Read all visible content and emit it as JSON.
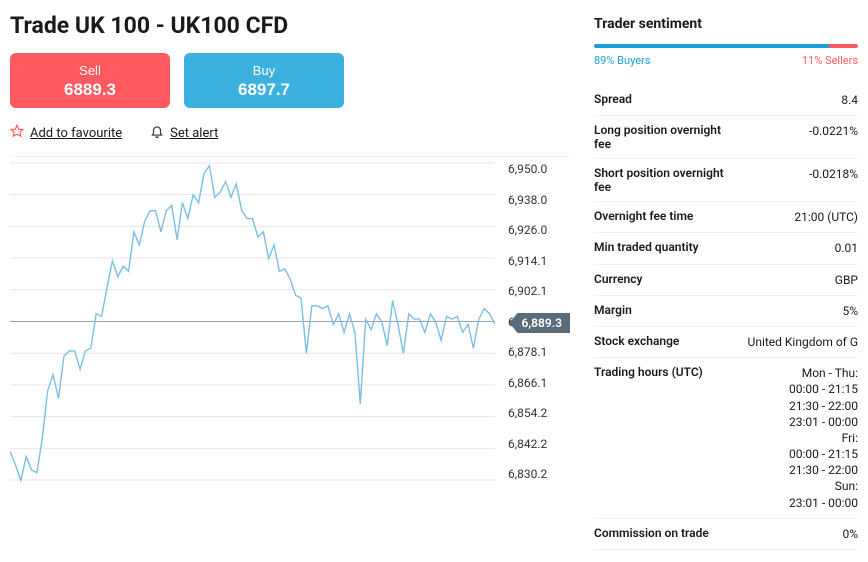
{
  "title": "Trade UK 100 - UK100 CFD",
  "trade": {
    "sell_label": "Sell",
    "sell_price": "6889.3",
    "buy_label": "Buy",
    "buy_price": "6897.7"
  },
  "actions": {
    "favourite": "Add to favourite",
    "alert": "Set alert"
  },
  "chart": {
    "type": "line",
    "line_color": "#7bbfe6",
    "bg_color": "#ffffff",
    "grid_color": "#e6e6e6",
    "current_line_color": "#9aa5b0",
    "current_badge_bg": "#5a6b7a",
    "y_ticks": [
      "6,950.0",
      "6,938.0",
      "6,926.0",
      "6,914.1",
      "6,902.1",
      "6,889.3",
      "6,878.1",
      "6,866.1",
      "6,854.2",
      "6,842.2",
      "6,830.2"
    ],
    "current_value": "6,889.3",
    "current_index": 5,
    "y_min": 6830.2,
    "y_max": 6950.0,
    "series": [
      6841,
      6836,
      6830,
      6839,
      6834,
      6833,
      6846,
      6864,
      6870,
      6861,
      6877,
      6879,
      6879,
      6872,
      6879,
      6880,
      6893,
      6892,
      6903,
      6913,
      6907,
      6911,
      6909,
      6924,
      6919,
      6928,
      6932,
      6932,
      6924,
      6932,
      6934,
      6921,
      6935,
      6929,
      6938,
      6935,
      6946,
      6949,
      6937,
      6939,
      6943,
      6937,
      6942,
      6932,
      6929,
      6929,
      6922,
      6924,
      6914,
      6919,
      6909,
      6910,
      6906,
      6900,
      6899,
      6878,
      6896,
      6896,
      6895,
      6896,
      6889,
      6893,
      6886,
      6893,
      6886,
      6859,
      6891,
      6887,
      6893,
      6890,
      6881,
      6898,
      6889,
      6878,
      6893,
      6891,
      6891,
      6886,
      6893,
      6890,
      6883,
      6892,
      6891,
      6892,
      6886,
      6889,
      6880,
      6891,
      6895,
      6893,
      6889
    ]
  },
  "sentiment": {
    "title": "Trader sentiment",
    "buyers_pct": 89,
    "sellers_pct": 11,
    "buyers_label": "89% Buyers",
    "sellers_label": "11% Sellers",
    "buyers_color": "#18a0d8",
    "sellers_color": "#ff5a5f"
  },
  "meta": [
    {
      "k": "Spread",
      "v": "8.4"
    },
    {
      "k": "Long position overnight fee",
      "v": "-0.0221%"
    },
    {
      "k": "Short position overnight fee",
      "v": "-0.0218%"
    },
    {
      "k": "Overnight fee time",
      "v": "21:00 (UTC)"
    },
    {
      "k": "Min traded quantity",
      "v": "0.01"
    },
    {
      "k": "Currency",
      "v": "GBP"
    },
    {
      "k": "Margin",
      "v": "5%"
    },
    {
      "k": "Stock exchange",
      "v": "United Kingdom of G"
    },
    {
      "k": "Trading hours (UTC)",
      "v": "Mon - Thu:\n00:00 - 21:15\n21:30 - 22:00\n23:01 - 00:00\nFri:\n00:00 - 21:15\n21:30 - 22:00\nSun:\n23:01 - 00:00"
    },
    {
      "k": "Commission on trade",
      "v": "0%"
    }
  ]
}
